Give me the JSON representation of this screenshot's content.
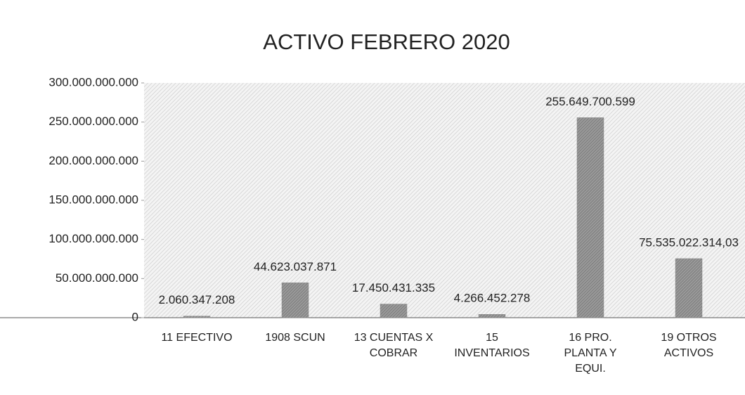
{
  "chart_data": {
    "type": "bar",
    "title": "ACTIVO FEBRERO 2020",
    "categories": [
      "11 EFECTIVO",
      "1908 SCUN",
      "13 CUENTAS X COBRAR",
      "15 INVENTARIOS",
      "16 PRO. PLANTA Y EQUI.",
      "19 OTROS ACTIVOS"
    ],
    "values": [
      2060347208,
      44623037871,
      17450431335,
      4266452278,
      255649700599,
      75535022314.03
    ],
    "value_labels": [
      "2.060.347.208",
      "44.623.037.871",
      "17.450.431.335",
      "4.266.452.278",
      "255.649.700.599",
      "75.535.022.314,03"
    ],
    "color": "#8c8c8c",
    "ylim": [
      0,
      300000000000
    ],
    "yticks": [
      0,
      {
        "value": 50000000000,
        "label": "50.000.000.000"
      },
      {
        "value": 100000000000,
        "label": "100.000.000.000"
      },
      {
        "value": 150000000000,
        "label": "150.000.000.000"
      },
      {
        "value": 200000000000,
        "label": "200.000.000.000"
      },
      {
        "value": 250000000000,
        "label": "250.000.000.000"
      },
      {
        "value": 300000000000,
        "label": "300.000.000.000"
      }
    ]
  }
}
